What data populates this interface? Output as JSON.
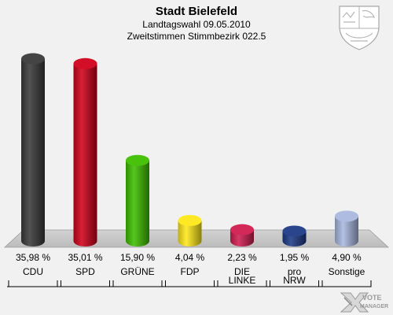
{
  "header": {
    "title": "Stadt Bielefeld",
    "subtitle1": "Landtagswahl 09.05.2010",
    "subtitle2": "Zweitstimmen Stimmbezirk 022.5"
  },
  "brand": {
    "line1": "VOTE",
    "line2": "MANAGER"
  },
  "chart_data": {
    "type": "bar",
    "title": "Stadt Bielefeld",
    "categories": [
      "CDU",
      "SPD",
      "GRÜNE",
      "FDP",
      "DIE\nLINKE",
      "pro\nNRW",
      "Sonstige"
    ],
    "values": [
      35.98,
      35.01,
      15.9,
      4.04,
      2.23,
      1.95,
      4.9
    ],
    "value_labels": [
      "35,98 %",
      "35,01 %",
      "15,90 %",
      "4,04 %",
      "2,23 %",
      "1,95 %",
      "4,90 %"
    ],
    "colors": [
      "#3a3a3a",
      "#d0021b",
      "#3fbf00",
      "#ffe81a",
      "#d01e50",
      "#1f3b86",
      "#aab8e0"
    ],
    "ylim": [
      0,
      37
    ],
    "grid": false,
    "legend": "none"
  }
}
